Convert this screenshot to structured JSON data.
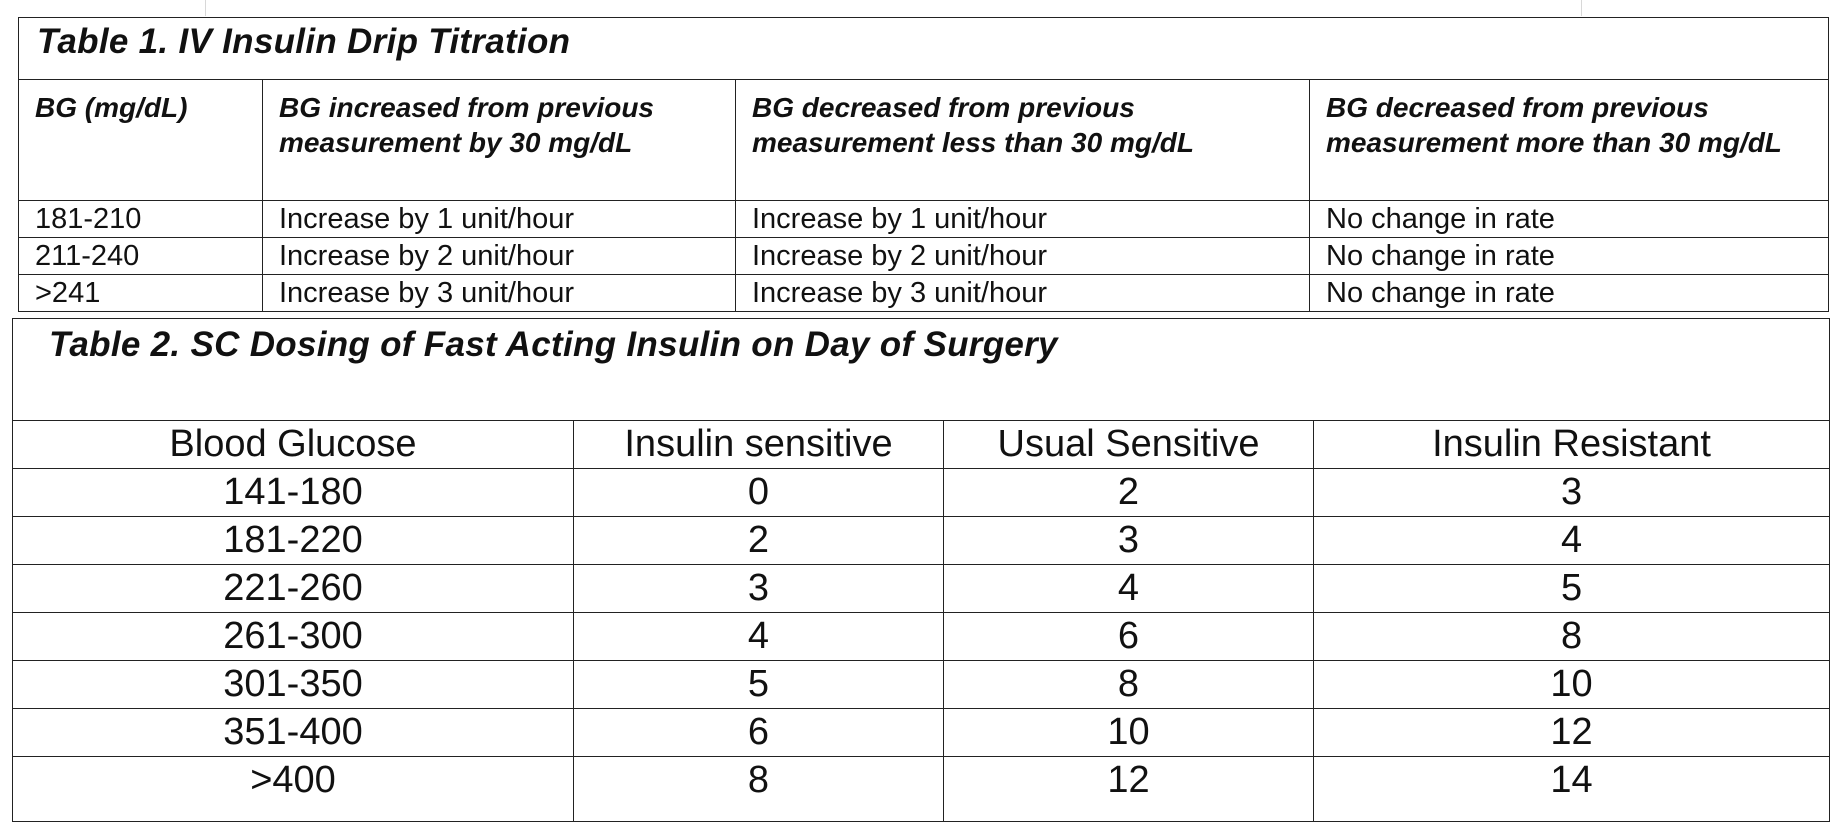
{
  "table1": {
    "title": "Table 1. IV Insulin Drip Titration",
    "headers": [
      "BG (mg/dL)",
      "BG increased from previous measurement by 30 mg/dL",
      "BG decreased from previous measurement less than 30 mg/dL",
      "BG decreased from previous measurement more than 30 mg/dL"
    ],
    "rows": [
      [
        "181-210",
        "Increase by 1 unit/hour",
        "Increase by 1 unit/hour",
        "No change in rate"
      ],
      [
        "211-240",
        "Increase by 2 unit/hour",
        "Increase by 2 unit/hour",
        "No change in rate"
      ],
      [
        ">241",
        "Increase by 3 unit/hour",
        "Increase by 3 unit/hour",
        "No change in rate"
      ]
    ]
  },
  "table2": {
    "title": "Table 2. SC Dosing of Fast Acting Insulin on Day of Surgery",
    "headers": [
      "Blood Glucose",
      "Insulin sensitive",
      "Usual Sensitive",
      "Insulin Resistant"
    ],
    "rows": [
      [
        "141-180",
        "0",
        "2",
        "3"
      ],
      [
        "181-220",
        "2",
        "3",
        "4"
      ],
      [
        "221-260",
        "3",
        "4",
        "5"
      ],
      [
        "261-300",
        "4",
        "6",
        "8"
      ],
      [
        "301-350",
        "5",
        "8",
        "10"
      ],
      [
        "351-400",
        "6",
        "10",
        "12"
      ],
      [
        ">400",
        "8",
        "12",
        "14"
      ]
    ]
  }
}
